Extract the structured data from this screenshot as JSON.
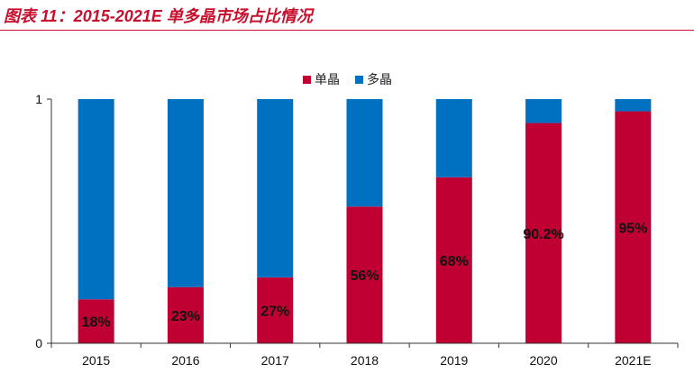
{
  "header": {
    "title": "图表 11：2015-2021E 单多晶市场占比情况"
  },
  "colors": {
    "mono": "#c00032",
    "poly": "#0070c0",
    "title": "#c8102e"
  },
  "chart_data": {
    "type": "bar",
    "stacked": true,
    "categories": [
      "2015",
      "2016",
      "2017",
      "2018",
      "2019",
      "2020",
      "2021E"
    ],
    "series": [
      {
        "name": "单晶",
        "values": [
          0.18,
          0.23,
          0.27,
          0.56,
          0.68,
          0.902,
          0.95
        ],
        "labels": [
          "18%",
          "23%",
          "27%",
          "56%",
          "68%",
          "90.2%",
          "95%"
        ]
      },
      {
        "name": "多晶",
        "values": [
          0.82,
          0.77,
          0.73,
          0.44,
          0.32,
          0.098,
          0.05
        ]
      }
    ],
    "ylim": [
      0,
      1
    ],
    "yticks": [
      "0",
      "1"
    ],
    "legend": "top-center",
    "grid": false
  }
}
